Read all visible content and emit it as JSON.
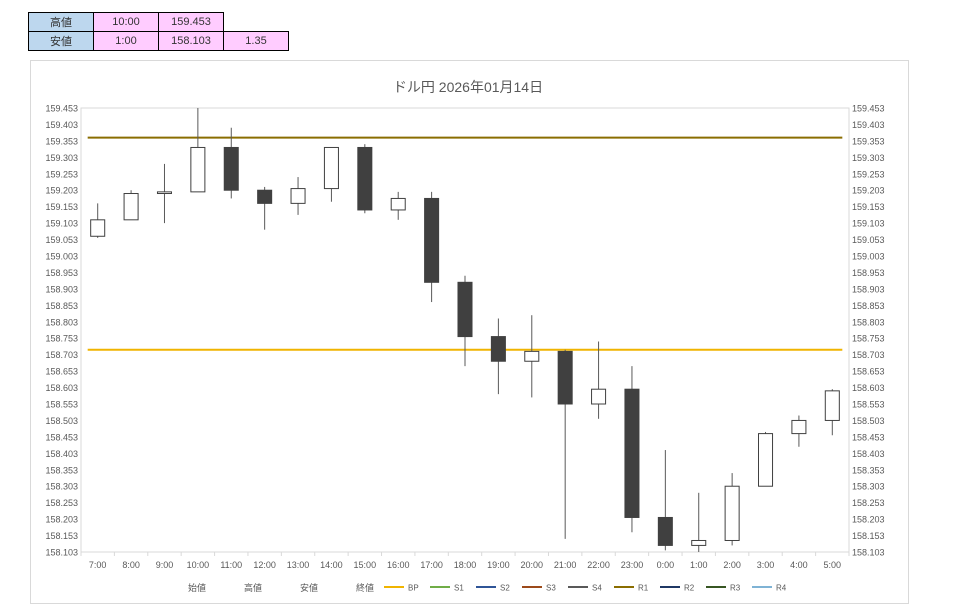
{
  "summary": {
    "high": {
      "label": "高値",
      "time": "10:00",
      "price": "159.453"
    },
    "low": {
      "label": "安値",
      "time": "1:00",
      "price": "158.103",
      "range": "1.35"
    }
  },
  "chart_data": {
    "type": "candlestick",
    "title": "ドル円  2026年01月14日",
    "categories": [
      "7:00",
      "8:00",
      "9:00",
      "10:00",
      "11:00",
      "12:00",
      "13:00",
      "14:00",
      "15:00",
      "16:00",
      "17:00",
      "18:00",
      "19:00",
      "20:00",
      "21:00",
      "22:00",
      "23:00",
      "0:00",
      "1:00",
      "2:00",
      "3:00",
      "4:00",
      "5:00"
    ],
    "ohlc": [
      {
        "o": 159.063,
        "h": 159.163,
        "l": 159.058,
        "c": 159.113
      },
      {
        "o": 159.113,
        "h": 159.203,
        "l": 159.113,
        "c": 159.193
      },
      {
        "o": 159.193,
        "h": 159.283,
        "l": 159.103,
        "c": 159.198
      },
      {
        "o": 159.198,
        "h": 159.453,
        "l": 159.198,
        "c": 159.333
      },
      {
        "o": 159.333,
        "h": 159.393,
        "l": 159.178,
        "c": 159.203
      },
      {
        "o": 159.203,
        "h": 159.213,
        "l": 159.083,
        "c": 159.163
      },
      {
        "o": 159.163,
        "h": 159.243,
        "l": 159.128,
        "c": 159.208
      },
      {
        "o": 159.208,
        "h": 159.333,
        "l": 159.168,
        "c": 159.333
      },
      {
        "o": 159.333,
        "h": 159.343,
        "l": 159.133,
        "c": 159.143
      },
      {
        "o": 159.143,
        "h": 159.198,
        "l": 159.113,
        "c": 159.178
      },
      {
        "o": 159.178,
        "h": 159.198,
        "l": 158.863,
        "c": 158.923
      },
      {
        "o": 158.923,
        "h": 158.943,
        "l": 158.668,
        "c": 158.758
      },
      {
        "o": 158.758,
        "h": 158.813,
        "l": 158.583,
        "c": 158.683
      },
      {
        "o": 158.683,
        "h": 158.823,
        "l": 158.573,
        "c": 158.713
      },
      {
        "o": 158.713,
        "h": 158.718,
        "l": 158.143,
        "c": 158.553
      },
      {
        "o": 158.553,
        "h": 158.743,
        "l": 158.508,
        "c": 158.598
      },
      {
        "o": 158.598,
        "h": 158.668,
        "l": 158.163,
        "c": 158.208
      },
      {
        "o": 158.208,
        "h": 158.413,
        "l": 158.108,
        "c": 158.123
      },
      {
        "o": 158.123,
        "h": 158.283,
        "l": 158.103,
        "c": 158.138
      },
      {
        "o": 158.138,
        "h": 158.343,
        "l": 158.123,
        "c": 158.303
      },
      {
        "o": 158.303,
        "h": 158.468,
        "l": 158.303,
        "c": 158.463
      },
      {
        "o": 158.463,
        "h": 158.518,
        "l": 158.423,
        "c": 158.503
      },
      {
        "o": 158.503,
        "h": 158.598,
        "l": 158.458,
        "c": 158.593
      }
    ],
    "ylim": [
      158.103,
      159.453
    ],
    "yticks": [
      "159.453",
      "159.403",
      "159.353",
      "159.303",
      "159.253",
      "159.203",
      "159.153",
      "159.103",
      "159.053",
      "159.003",
      "158.953",
      "158.903",
      "158.853",
      "158.803",
      "158.753",
      "158.703",
      "158.653",
      "158.603",
      "158.553",
      "158.503",
      "158.453",
      "158.403",
      "158.353",
      "158.303",
      "158.253",
      "158.203",
      "158.153",
      "158.103"
    ],
    "hlines": [
      {
        "name": "R1",
        "value": 159.363,
        "color": "#8a6d00"
      },
      {
        "name": "BP",
        "value": 158.718,
        "color": "#f0b400"
      }
    ],
    "legend_position": "bottom",
    "legend_text_items": [
      "始値",
      "高値",
      "安値",
      "終値"
    ],
    "legend_line_items": [
      {
        "name": "BP",
        "color": "#f0b400"
      },
      {
        "name": "S1",
        "color": "#70ad47"
      },
      {
        "name": "S2",
        "color": "#2f5597"
      },
      {
        "name": "S3",
        "color": "#9c4a1a"
      },
      {
        "name": "S4",
        "color": "#595959"
      },
      {
        "name": "R1",
        "color": "#8a6d00"
      },
      {
        "name": "R2",
        "color": "#1f3864"
      },
      {
        "name": "R3",
        "color": "#375623"
      },
      {
        "name": "R4",
        "color": "#7fb3d5"
      }
    ],
    "colors": {
      "up_fill": "#ffffff",
      "down_fill": "#404040",
      "candle_stroke": "#404040",
      "wick": "#595959",
      "grid": "#d9d9d9"
    }
  }
}
